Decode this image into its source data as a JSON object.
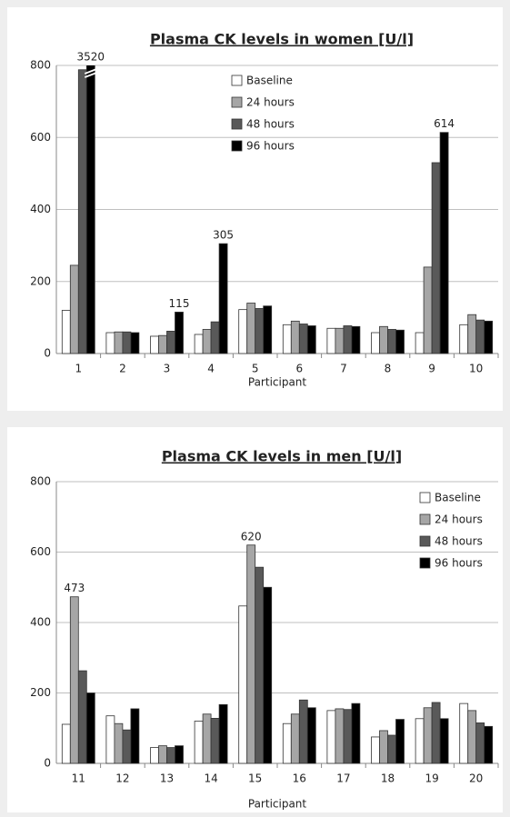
{
  "chart_data": [
    {
      "type": "bar",
      "title": "Plasma CK levels in women [U/l]",
      "x_label": "Participant",
      "categories": [
        "1",
        "2",
        "3",
        "4",
        "5",
        "6",
        "7",
        "8",
        "9",
        "10"
      ],
      "series": [
        {
          "name": "Baseline",
          "color": "#ffffff",
          "values": [
            120,
            58,
            48,
            53,
            122,
            80,
            70,
            58,
            58,
            80
          ]
        },
        {
          "name": "24 hours",
          "color": "#a6a6a6",
          "values": [
            245,
            60,
            50,
            67,
            140,
            90,
            70,
            75,
            240,
            108
          ]
        },
        {
          "name": "48 hours",
          "color": "#595959",
          "values": [
            788,
            60,
            62,
            88,
            125,
            82,
            77,
            67,
            530,
            93
          ]
        },
        {
          "name": "96 hours",
          "color": "#000000",
          "values": [
            3520,
            58,
            115,
            305,
            132,
            77,
            75,
            65,
            614,
            90
          ],
          "value_labels": [
            "3520",
            null,
            "115",
            "305",
            null,
            null,
            null,
            null,
            "614",
            null
          ]
        }
      ],
      "ylim": [
        0,
        800
      ],
      "yticks": [
        0,
        200,
        400,
        600,
        800
      ],
      "grid": true,
      "legend": "top"
    },
    {
      "type": "bar",
      "title": "Plasma CK levels in men [U/l]",
      "x_label": "Participant",
      "categories": [
        "11",
        "12",
        "13",
        "14",
        "15",
        "16",
        "17",
        "18",
        "19",
        "20"
      ],
      "series": [
        {
          "name": "Baseline",
          "color": "#ffffff",
          "values": [
            111,
            135,
            45,
            120,
            447,
            113,
            150,
            75,
            127,
            170
          ]
        },
        {
          "name": "24 hours",
          "color": "#a6a6a6",
          "values": [
            473,
            113,
            50,
            140,
            620,
            140,
            155,
            93,
            158,
            150
          ],
          "value_labels": [
            "473",
            null,
            null,
            null,
            "620",
            null,
            null,
            null,
            null,
            null
          ]
        },
        {
          "name": "48 hours",
          "color": "#595959",
          "values": [
            263,
            95,
            45,
            128,
            557,
            180,
            153,
            80,
            173,
            115
          ]
        },
        {
          "name": "96 hours",
          "color": "#000000",
          "values": [
            200,
            155,
            50,
            167,
            500,
            158,
            170,
            125,
            127,
            105
          ]
        }
      ],
      "ylim": [
        0,
        800
      ],
      "yticks": [
        0,
        200,
        400,
        600,
        800
      ],
      "grid": true,
      "legend": "top right"
    }
  ]
}
